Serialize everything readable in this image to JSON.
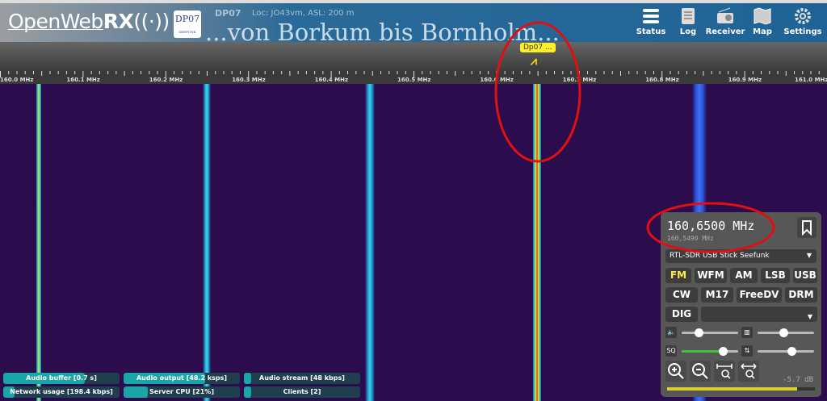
{
  "header": {
    "logo_light": "OpenWeb",
    "logo_bold": "RX",
    "banner": "...von Borkum bis Bornholm...",
    "badge": "DP07",
    "badge_sub": "SEEFUNK",
    "receiver_name": "DP07",
    "receiver_location": "Loc: JO43vm, ASL: 200 m",
    "nav": [
      {
        "label": "Status",
        "icon": "status-icon"
      },
      {
        "label": "Log",
        "icon": "log-icon"
      },
      {
        "label": "Receiver",
        "icon": "radio-icon"
      },
      {
        "label": "Map",
        "icon": "map-icon"
      },
      {
        "label": "Settings",
        "icon": "gear-icon"
      }
    ]
  },
  "bookmark": {
    "label": "Dp07 ..."
  },
  "scale": {
    "labels": [
      "160.0 MHz",
      "160.1 MHz",
      "160.2 MHz",
      "160.3 MHz",
      "160.4 MHz",
      "160.5 MHz",
      "160.6 MHz",
      "160.7 MHz",
      "160.8 MHz",
      "160.9 MHz",
      "161.0 MHz"
    ]
  },
  "panel": {
    "frequency": "160,6500 MHz",
    "offset_frequency": "160,5490 MHz",
    "profile": "RTL-SDR USB Stick Seefunk",
    "modes_row1": [
      "FM",
      "WFM",
      "AM",
      "LSB",
      "USB"
    ],
    "modes_row2": [
      "CW",
      "M17",
      "FreeDV",
      "DRM"
    ],
    "mode_dig": "DIG",
    "active_mode": "FM",
    "volume": 0.3,
    "squelch": 0.73,
    "nr": 0.45,
    "agc": 0.6,
    "squelch_label": "SQ",
    "db": "-5.7 dB",
    "smeter_level": 0.88,
    "accent": "#ffeb3b"
  },
  "status": [
    {
      "label": "Audio buffer [0.7 s]",
      "level": 0.7
    },
    {
      "label": "Audio output [48.2 ksps]",
      "level": 0.7
    },
    {
      "label": "Audio stream [48 kbps]",
      "level": 0.05
    },
    {
      "label": "Network usage [198.4 kbps]",
      "level": 0.1
    },
    {
      "label": "Server CPU [21%]",
      "level": 0.21
    },
    {
      "label": "Clients [2]",
      "level": 0.05
    }
  ]
}
